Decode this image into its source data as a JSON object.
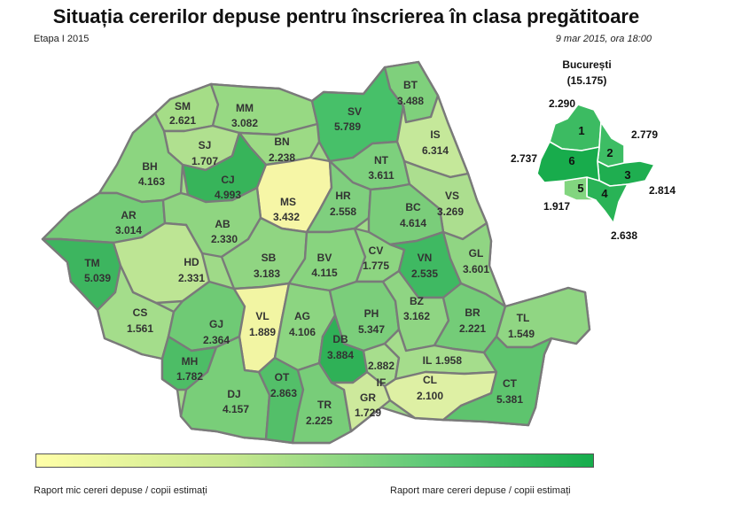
{
  "header": {
    "title": "Situația cererilor depuse pentru înscrierea în clasa pregătitoare",
    "stage": "Etapa I 2015",
    "date": "9 mar 2015, ora 18:00"
  },
  "bucuresti": {
    "name": "București",
    "total": "(15.175)",
    "sectors": [
      {
        "id": "1",
        "value": "2.290",
        "color": "#3cbb62"
      },
      {
        "id": "2",
        "value": "2.779",
        "color": "#3dbd64"
      },
      {
        "id": "3",
        "value": "2.814",
        "color": "#1fae50"
      },
      {
        "id": "4",
        "value": "2.638",
        "color": "#29b356"
      },
      {
        "id": "5",
        "value": "1.917",
        "color": "#82d57f"
      },
      {
        "id": "6",
        "value": "2.737",
        "color": "#18ac4c"
      }
    ]
  },
  "counties": [
    {
      "code": "SM",
      "value": "2.621",
      "color": "#a5dd87"
    },
    {
      "code": "MM",
      "value": "3.082",
      "color": "#97d983"
    },
    {
      "code": "BT",
      "value": "3.488",
      "color": "#7fd07c"
    },
    {
      "code": "SV",
      "value": "5.789",
      "color": "#47c069"
    },
    {
      "code": "IS",
      "value": "6.314",
      "color": "#c5e89a"
    },
    {
      "code": "SJ",
      "value": "1.707",
      "color": "#b0e08f"
    },
    {
      "code": "BN",
      "value": "2.238",
      "color": "#9cda85"
    },
    {
      "code": "NT",
      "value": "3.611",
      "color": "#7dd07d"
    },
    {
      "code": "BH",
      "value": "4.163",
      "color": "#8cd580"
    },
    {
      "code": "CJ",
      "value": "4.993",
      "color": "#37b45a"
    },
    {
      "code": "MS",
      "value": "3.432",
      "color": "#f6f6a6"
    },
    {
      "code": "HR",
      "value": "2.558",
      "color": "#7fcf7e"
    },
    {
      "code": "VS",
      "value": "3.269",
      "color": "#acde8f"
    },
    {
      "code": "BC",
      "value": "4.614",
      "color": "#7acd7a"
    },
    {
      "code": "AR",
      "value": "3.014",
      "color": "#74cc77"
    },
    {
      "code": "AB",
      "value": "2.330",
      "color": "#8fd581"
    },
    {
      "code": "TM",
      "value": "5.039",
      "color": "#3db55f"
    },
    {
      "code": "HD",
      "value": "2.331",
      "color": "#bde594"
    },
    {
      "code": "SB",
      "value": "3.183",
      "color": "#90d582"
    },
    {
      "code": "BV",
      "value": "4.115",
      "color": "#88d47f"
    },
    {
      "code": "CV",
      "value": "1.775",
      "color": "#8dd581"
    },
    {
      "code": "VN",
      "value": "2.535",
      "color": "#3fb962"
    },
    {
      "code": "GL",
      "value": "3.601",
      "color": "#90d583"
    },
    {
      "code": "CS",
      "value": "1.561",
      "color": "#a4dd8b"
    },
    {
      "code": "GJ",
      "value": "2.364",
      "color": "#6fca75"
    },
    {
      "code": "VL",
      "value": "1.889",
      "color": "#f2f5a3"
    },
    {
      "code": "AG",
      "value": "4.106",
      "color": "#8cd581"
    },
    {
      "code": "PH",
      "value": "5.347",
      "color": "#7bce7b"
    },
    {
      "code": "BZ",
      "value": "3.162",
      "color": "#8fd583"
    },
    {
      "code": "BR",
      "value": "2.221",
      "color": "#74cc78"
    },
    {
      "code": "TL",
      "value": "1.549",
      "color": "#90d683"
    },
    {
      "code": "DB",
      "value": "3.884",
      "color": "#2fb157"
    },
    {
      "code": "MH",
      "value": "1.782",
      "color": "#4dbd66"
    },
    {
      "code": "DJ",
      "value": "4.157",
      "color": "#79ce79"
    },
    {
      "code": "OT",
      "value": "2.863",
      "color": "#53bf69"
    },
    {
      "code": "TR",
      "value": "2.225",
      "color": "#78cd79"
    },
    {
      "code": "GR",
      "value": "1.729",
      "color": "#cde99c"
    },
    {
      "code": "IF",
      "value": "2.882",
      "color": "#a7de8d"
    },
    {
      "code": "IL",
      "value": "1.958",
      "color": "#a5dd8c"
    },
    {
      "code": "CL",
      "value": "2.100",
      "color": "#def0a4"
    },
    {
      "code": "CT",
      "value": "5.381",
      "color": "#5ec46e"
    }
  ],
  "legend": {
    "low": "Raport mic cereri depuse / copii estimați",
    "high": "Raport mare cereri depuse / copii estimați"
  }
}
